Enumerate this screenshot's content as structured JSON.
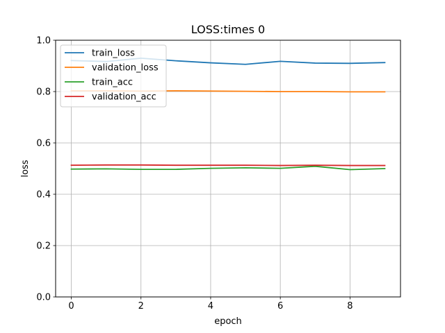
{
  "chart_data": {
    "type": "line",
    "title": "LOSS:times 0",
    "xlabel": "epoch",
    "ylabel": "loss",
    "xlim": [
      -0.45,
      9.45
    ],
    "ylim": [
      0.0,
      1.0
    ],
    "x_ticks": [
      0,
      2,
      4,
      6,
      8
    ],
    "y_ticks": [
      0.0,
      0.2,
      0.4,
      0.6,
      0.8,
      1.0
    ],
    "x_tick_labels": [
      "0",
      "2",
      "4",
      "6",
      "8"
    ],
    "y_tick_labels": [
      "0.0",
      "0.2",
      "0.4",
      "0.6",
      "0.8",
      "1.0"
    ],
    "grid": true,
    "legend_position": "upper-left",
    "x": [
      0,
      1,
      2,
      3,
      4,
      5,
      6,
      7,
      8,
      9
    ],
    "series": [
      {
        "name": "train_loss",
        "color": "#1f77b4",
        "values": [
          0.921,
          0.917,
          0.93,
          0.92,
          0.912,
          0.906,
          0.918,
          0.911,
          0.91,
          0.913
        ]
      },
      {
        "name": "validation_loss",
        "color": "#ff7f0e",
        "values": [
          0.803,
          0.803,
          0.802,
          0.803,
          0.802,
          0.801,
          0.8,
          0.8,
          0.799,
          0.799
        ]
      },
      {
        "name": "train_acc",
        "color": "#2ca02c",
        "values": [
          0.498,
          0.499,
          0.497,
          0.497,
          0.501,
          0.503,
          0.501,
          0.509,
          0.496,
          0.5
        ]
      },
      {
        "name": "validation_acc",
        "color": "#d62728",
        "values": [
          0.513,
          0.514,
          0.514,
          0.513,
          0.513,
          0.513,
          0.512,
          0.513,
          0.512,
          0.512
        ]
      }
    ]
  }
}
